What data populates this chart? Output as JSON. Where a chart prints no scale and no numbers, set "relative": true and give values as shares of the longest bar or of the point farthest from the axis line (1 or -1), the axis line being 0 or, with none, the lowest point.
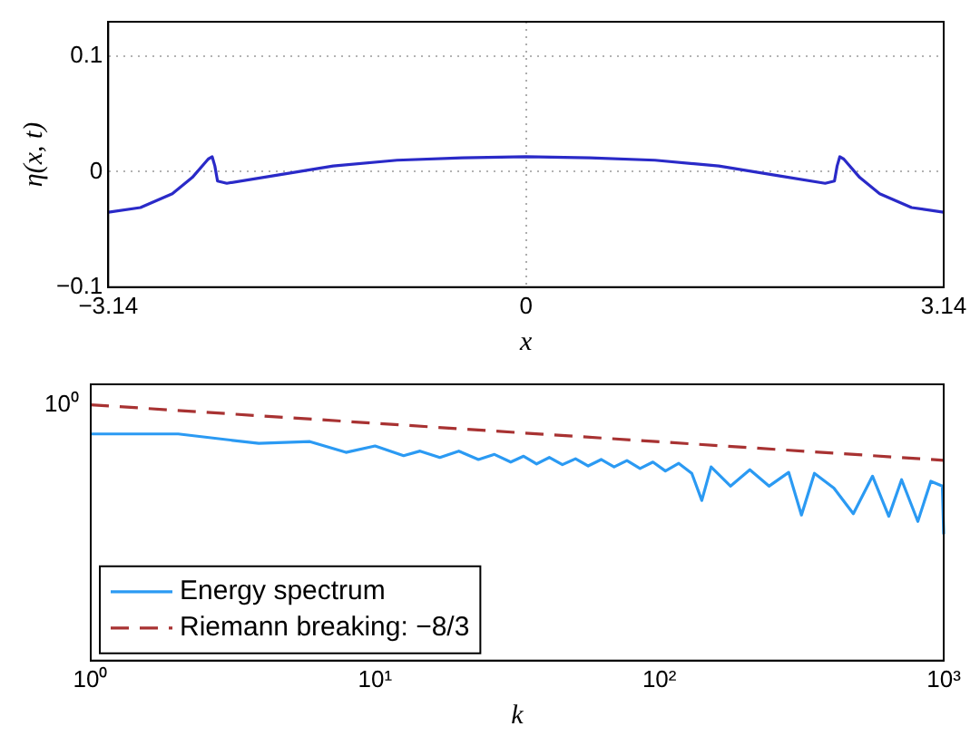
{
  "chart_data": [
    {
      "type": "line",
      "xlabel": "x",
      "ylabel": "η(x, t)",
      "xlim": [
        -3.14159,
        3.14159
      ],
      "xticks": [
        {
          "value": -3.14159,
          "label": "−3.14"
        },
        0,
        {
          "value": 3.14159,
          "label": "3.14"
        }
      ],
      "ylim": [
        -0.1,
        0.13
      ],
      "yticks": [
        {
          "value": -0.1,
          "label": "−0.1"
        },
        0,
        0.1
      ],
      "grid": true,
      "series": [
        {
          "color": "#2a2ac8",
          "x": [
            -3.14,
            -2.9,
            -2.66,
            -2.51,
            -2.39,
            -2.36,
            -2.34,
            -2.32,
            -2.25,
            -1.93,
            -1.45,
            -0.97,
            -0.48,
            0,
            0.48,
            0.97,
            1.45,
            1.93,
            2.25,
            2.32,
            2.34,
            2.36,
            2.39,
            2.51,
            2.66,
            2.9,
            3.14
          ],
          "values": [
            -0.035,
            -0.031,
            -0.019,
            -0.005,
            0.011,
            0.013,
            0.005,
            -0.008,
            -0.01,
            -0.004,
            0.005,
            0.01,
            0.012,
            0.013,
            0.012,
            0.01,
            0.005,
            -0.004,
            -0.01,
            -0.008,
            0.005,
            0.013,
            0.011,
            -0.005,
            -0.019,
            -0.031,
            -0.035
          ]
        }
      ]
    },
    {
      "type": "line",
      "xlabel": "k",
      "log": "x",
      "relative": true,
      "annotations": [
        "10⁰"
      ],
      "xlim": [
        1,
        1000
      ],
      "xticks": [
        {
          "value": 1,
          "label": "10⁰"
        },
        {
          "value": 10,
          "label": "10¹"
        },
        {
          "value": 100,
          "label": "10²"
        },
        {
          "value": 1000,
          "label": "10³"
        }
      ],
      "legend": "bottom left",
      "series": [
        {
          "name": "Energy spectrum",
          "color": "#2b9af3",
          "x": [
            1,
            2.03,
            3.9,
            5.9,
            7.9,
            10,
            12.6,
            14.4,
            16.9,
            19.7,
            23.1,
            26.3,
            30,
            33.3,
            37,
            41,
            45.6,
            50.7,
            56.2,
            62.4,
            69.3,
            76.9,
            85.5,
            94.9,
            105,
            117,
            130,
            141,
            152,
            178,
            208,
            243,
            285,
            316,
            351,
            411,
            481,
            562,
            641,
            711,
            811,
            901,
            989,
            1000
          ],
          "values": [
            0.886,
            0.886,
            0.849,
            0.856,
            0.814,
            0.839,
            0.801,
            0.819,
            0.794,
            0.819,
            0.786,
            0.806,
            0.776,
            0.799,
            0.769,
            0.794,
            0.766,
            0.789,
            0.761,
            0.786,
            0.757,
            0.782,
            0.751,
            0.776,
            0.741,
            0.771,
            0.732,
            0.626,
            0.757,
            0.682,
            0.746,
            0.682,
            0.736,
            0.569,
            0.732,
            0.674,
            0.574,
            0.721,
            0.564,
            0.707,
            0.544,
            0.701,
            0.682,
            0.494
          ]
        },
        {
          "name": "Riemann breaking: −8/3",
          "color": "#a83232",
          "line_style": "dashed",
          "x": [
            1,
            1000
          ],
          "values": [
            1,
            0.783
          ]
        }
      ]
    }
  ]
}
